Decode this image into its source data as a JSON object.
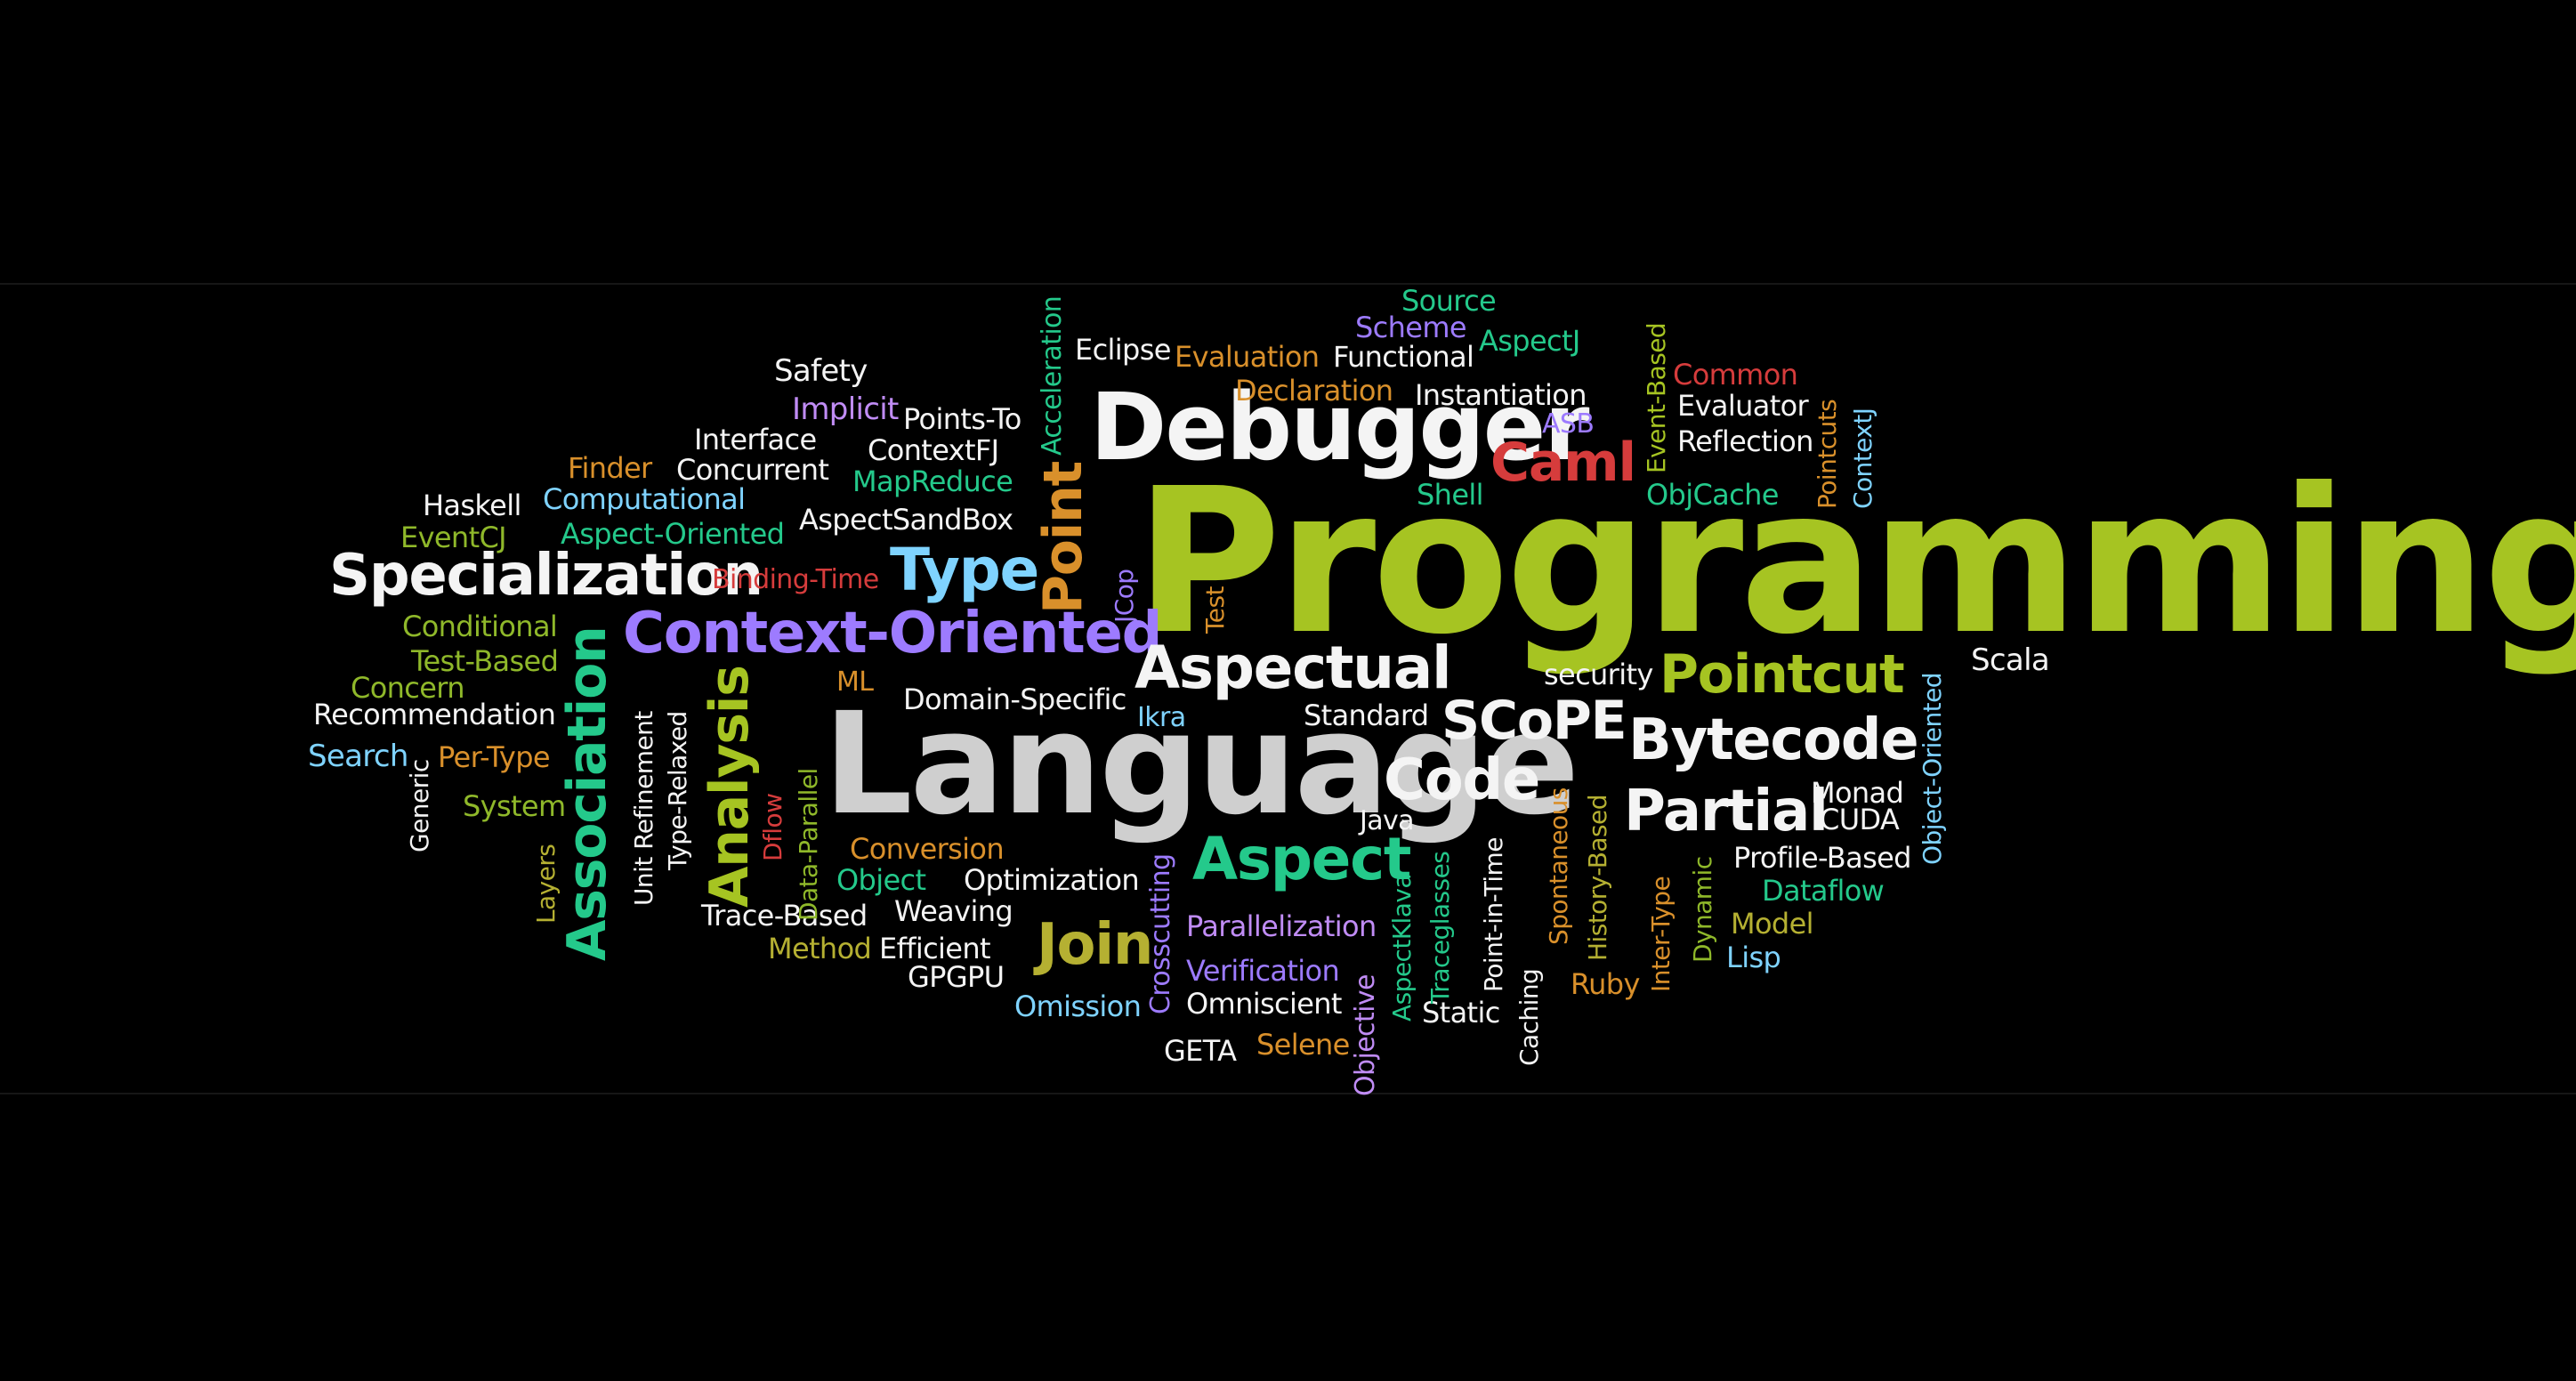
{
  "colors": {
    "background": "#000000",
    "white": "#f4f4f4",
    "lightgray": "#cfcfcf",
    "green": "#a6c422",
    "lime": "#8fb82a",
    "teal": "#24c98b",
    "purple": "#9d7bff",
    "lavender": "#c08cf5",
    "cyan": "#7fd3ff",
    "orange": "#d9902b",
    "red": "#d63c3c",
    "olive": "#b5b032"
  },
  "words": [
    {
      "text": "Programming"
    },
    {
      "text": "Language"
    },
    {
      "text": "Debugger"
    },
    {
      "text": "Context-Oriented"
    },
    {
      "text": "Specialization"
    },
    {
      "text": "Aspectual"
    },
    {
      "text": "Bytecode"
    },
    {
      "text": "SCoPE"
    },
    {
      "text": "Partial"
    },
    {
      "text": "Code"
    },
    {
      "text": "Pointcut"
    },
    {
      "text": "Aspect"
    },
    {
      "text": "Type"
    },
    {
      "text": "Join"
    },
    {
      "text": "Caml"
    },
    {
      "text": "Point"
    },
    {
      "text": "Association"
    },
    {
      "text": "Analysis"
    },
    {
      "text": "Safety"
    },
    {
      "text": "Implicit"
    },
    {
      "text": "Points-To"
    },
    {
      "text": "ContextFJ"
    },
    {
      "text": "Interface"
    },
    {
      "text": "Concurrent"
    },
    {
      "text": "Finder"
    },
    {
      "text": "MapReduce"
    },
    {
      "text": "Haskell"
    },
    {
      "text": "Computational"
    },
    {
      "text": "EventCJ"
    },
    {
      "text": "Aspect-Oriented"
    },
    {
      "text": "AspectSandBox"
    },
    {
      "text": "Binding-Time"
    },
    {
      "text": "Conditional"
    },
    {
      "text": "Test-Based"
    },
    {
      "text": "Concern"
    },
    {
      "text": "Recommendation"
    },
    {
      "text": "Search"
    },
    {
      "text": "Per-Type"
    },
    {
      "text": "System"
    },
    {
      "text": "ML"
    },
    {
      "text": "Domain-Specific"
    },
    {
      "text": "Ikra"
    },
    {
      "text": "Standard"
    },
    {
      "text": "security"
    },
    {
      "text": "Scala"
    },
    {
      "text": "Eclipse"
    },
    {
      "text": "Evaluation"
    },
    {
      "text": "Functional"
    },
    {
      "text": "Source"
    },
    {
      "text": "Scheme"
    },
    {
      "text": "AspectJ"
    },
    {
      "text": "Declaration"
    },
    {
      "text": "Instantiation"
    },
    {
      "text": "ASB"
    },
    {
      "text": "Shell"
    },
    {
      "text": "Common"
    },
    {
      "text": "Evaluator"
    },
    {
      "text": "Reflection"
    },
    {
      "text": "ObjCache"
    },
    {
      "text": "Monad"
    },
    {
      "text": "CUDA"
    },
    {
      "text": "Profile-Based"
    },
    {
      "text": "Dataflow"
    },
    {
      "text": "Model"
    },
    {
      "text": "Lisp"
    },
    {
      "text": "Java"
    },
    {
      "text": "Conversion"
    },
    {
      "text": "Object"
    },
    {
      "text": "Optimization"
    },
    {
      "text": "Trace-Based"
    },
    {
      "text": "Weaving"
    },
    {
      "text": "Method"
    },
    {
      "text": "Efficient"
    },
    {
      "text": "GPGPU"
    },
    {
      "text": "Omission"
    },
    {
      "text": "Parallelization"
    },
    {
      "text": "Verification"
    },
    {
      "text": "Omniscient"
    },
    {
      "text": "GETA"
    },
    {
      "text": "Selene"
    },
    {
      "text": "Static"
    },
    {
      "text": "Ruby"
    },
    {
      "text": "Acceleration"
    },
    {
      "text": "JCop"
    },
    {
      "text": "Test"
    },
    {
      "text": "Event-Based"
    },
    {
      "text": "Pointcuts"
    },
    {
      "text": "ContextJ"
    },
    {
      "text": "Object-Oriented"
    },
    {
      "text": "Generic"
    },
    {
      "text": "Layers"
    },
    {
      "text": "Unit Refinement"
    },
    {
      "text": "Type-Relaxed"
    },
    {
      "text": "Dflow"
    },
    {
      "text": "Data-Parallel"
    },
    {
      "text": "Crosscutting"
    },
    {
      "text": "Objective"
    },
    {
      "text": "AspectKlava"
    },
    {
      "text": "Traceglasses"
    },
    {
      "text": "Point-in-Time"
    },
    {
      "text": "Caching"
    },
    {
      "text": "Spontaneous"
    },
    {
      "text": "History-Based"
    },
    {
      "text": "Inter-Type"
    },
    {
      "text": "Dynamic"
    }
  ]
}
